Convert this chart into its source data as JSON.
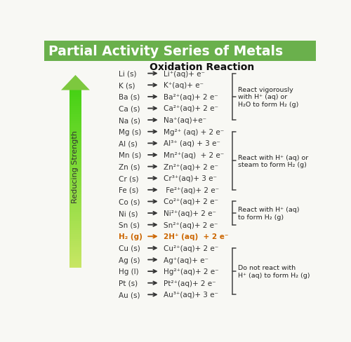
{
  "title": "Partial Activity Series of Metals",
  "title_color": "#ffffff",
  "title_bg_color": "#6ab04c",
  "header": "Oxidation Reaction",
  "background_color": "#f8f8f4",
  "arrow_label": "Reducing Strength",
  "reactions": [
    {
      "left": "Li (s)",
      "arrow": "→",
      "right": "Li⁺(aq)+ e⁻",
      "color": "#333333"
    },
    {
      "left": "K (s)",
      "arrow": "→",
      "right": "K⁺(aq)+ e⁻",
      "color": "#333333"
    },
    {
      "left": "Ba (s)",
      "arrow": "→",
      "right": "Ba²⁺(aq)+ 2 e⁻",
      "color": "#333333"
    },
    {
      "left": "Ca (s)",
      "arrow": "→",
      "right": "Ca²⁺(aq)+ 2 e⁻",
      "color": "#333333"
    },
    {
      "left": "Na (s)",
      "arrow": "→",
      "right": "Na⁺(aq)+e⁻",
      "color": "#333333"
    },
    {
      "left": "Mg (s)",
      "arrow": "→",
      "right": "Mg²⁺ (aq) + 2 e⁻",
      "color": "#333333"
    },
    {
      "left": "Al (s)",
      "arrow": "→",
      "right": "Al³⁺ (aq) + 3 e⁻",
      "color": "#333333"
    },
    {
      "left": "Mn (s)",
      "arrow": "→",
      "right": "Mn²⁺(aq)  + 2 e⁻",
      "color": "#333333"
    },
    {
      "left": "Zn (s)",
      "arrow": "→",
      "right": "Zn²⁺(aq)+ 2 e⁻",
      "color": "#333333"
    },
    {
      "left": "Cr (s)",
      "arrow": "→",
      "right": "Cr³⁺(aq)+ 3 e⁻",
      "color": "#333333"
    },
    {
      "left": "Fe (s)",
      "arrow": "→",
      "right": " Fe²⁺(aq)+ 2 e⁻",
      "color": "#333333"
    },
    {
      "left": "Co (s)",
      "arrow": "→",
      "right": "Co²⁺(aq)+ 2 e⁻",
      "color": "#333333"
    },
    {
      "left": "Ni (s)",
      "arrow": "→",
      "right": "Ni²⁺(aq)+ 2 e⁻",
      "color": "#333333"
    },
    {
      "left": "Sn (s)",
      "arrow": "→",
      "right": "Sn²⁺(aq)+ 2 e⁻",
      "color": "#333333"
    },
    {
      "left": "H₂ (g)",
      "arrow": "→",
      "right": "2H⁺ (aq)  + 2 e⁻",
      "color": "#cc6600"
    },
    {
      "left": "Cu (s)",
      "arrow": "→",
      "right": "Cu²⁺(aq)+ 2 e⁻",
      "color": "#333333"
    },
    {
      "left": "Ag (s)",
      "arrow": "→",
      "right": "Ag⁺(aq)+ e⁻",
      "color": "#333333"
    },
    {
      "left": "Hg (l)",
      "arrow": "→",
      "right": "Hg²⁺(aq)+ 2 e⁻",
      "color": "#333333"
    },
    {
      "left": "Pt (s)",
      "arrow": "→",
      "right": "Pt²⁺(aq)+ 2 e⁻",
      "color": "#333333"
    },
    {
      "left": "Au (s)",
      "arrow": "→",
      "right": "Au³⁺(aq)+ 3 e⁻",
      "color": "#333333"
    }
  ],
  "brackets": [
    {
      "rows": [
        0,
        4
      ],
      "label": "React vigorously\nwith H⁺ (aq) or\nH₂O to form H₂ (g)"
    },
    {
      "rows": [
        5,
        10
      ],
      "label": "React with H⁺ (aq) or\nsteam to form H₂ (g)"
    },
    {
      "rows": [
        11,
        13
      ],
      "label": "React with H⁺ (aq)\nto form H₂ (g)"
    },
    {
      "rows": [
        15,
        19
      ],
      "label": "Do not react with\nH⁺ (aq) to form H₂ (g)"
    }
  ]
}
